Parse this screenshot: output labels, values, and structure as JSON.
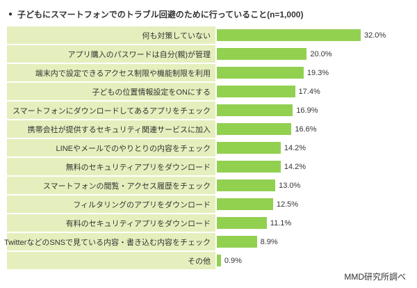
{
  "header": {
    "bullet": "●"
  },
  "chart_data": {
    "type": "bar",
    "orientation": "horizontal",
    "title": "子どもにスマートフォンでのトラブル回避のために行っていること(n=1,000)",
    "categories": [
      "何も対策していない",
      "アプリ購入のパスワードは自分(親)が管理",
      "端末内で設定できるアクセス制限や機能制限を利用",
      "子どもの位置情報設定をONにする",
      "スマートフォンにダウンロードしてあるアプリをチェック",
      "携帯会社が提供するセキュリティ関連サービスに加入",
      "LINEやメールでのやりとりの内容をチェック",
      "無料のセキュリティアプリをダウンロード",
      "スマートフォンの閲覧・アクセス履歴をチェック",
      "フィルタリングのアプリをダウンロード",
      "有料のセキュリティアプリをダウンロード",
      "TwitterなどのSNSで見ている内容・書き込む内容をチェック",
      "その他"
    ],
    "values": [
      32.0,
      20.0,
      19.3,
      17.4,
      16.9,
      16.6,
      14.2,
      14.2,
      13.0,
      12.5,
      11.1,
      8.9,
      0.9
    ],
    "value_labels": [
      "32.0%",
      "20.0%",
      "19.3%",
      "17.4%",
      "16.9%",
      "16.6%",
      "14.2%",
      "14.2%",
      "13.0%",
      "12.5%",
      "11.1%",
      "8.9%",
      "0.9%"
    ],
    "xlim": [
      0,
      35
    ],
    "bar_color": "#92d050",
    "label_bg_color": "#e5efbd",
    "legend": "none",
    "grid": false
  },
  "footer": {
    "source": "MMD研究所調べ"
  }
}
